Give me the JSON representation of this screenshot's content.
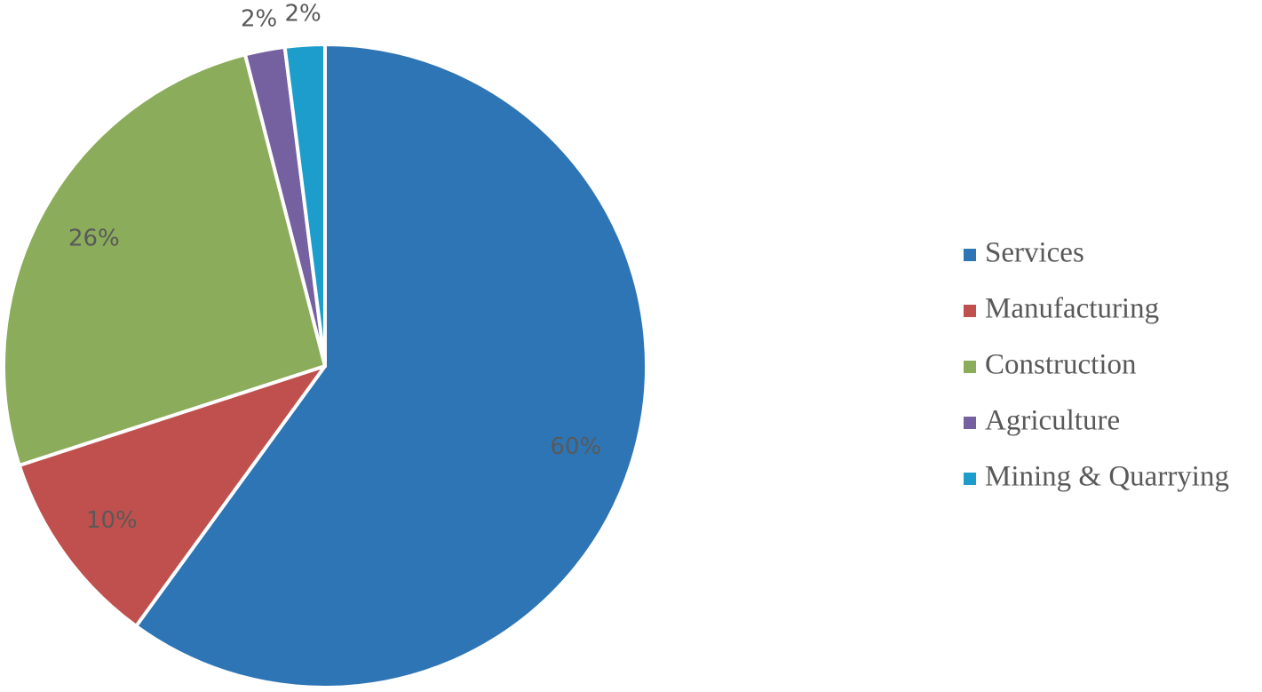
{
  "chart_data": {
    "type": "pie",
    "categories": [
      "Services",
      "Manufacturing",
      "Construction",
      "Agriculture",
      "Mining & Quarrying"
    ],
    "values": [
      60,
      10,
      26,
      2,
      2
    ],
    "value_labels": [
      "60%",
      "10%",
      "26%",
      "2%",
      "2%"
    ],
    "colors": [
      "#2e75b6",
      "#c0504d",
      "#8bac5a",
      "#7560a0",
      "#1c9dcb"
    ],
    "legend": "right"
  }
}
